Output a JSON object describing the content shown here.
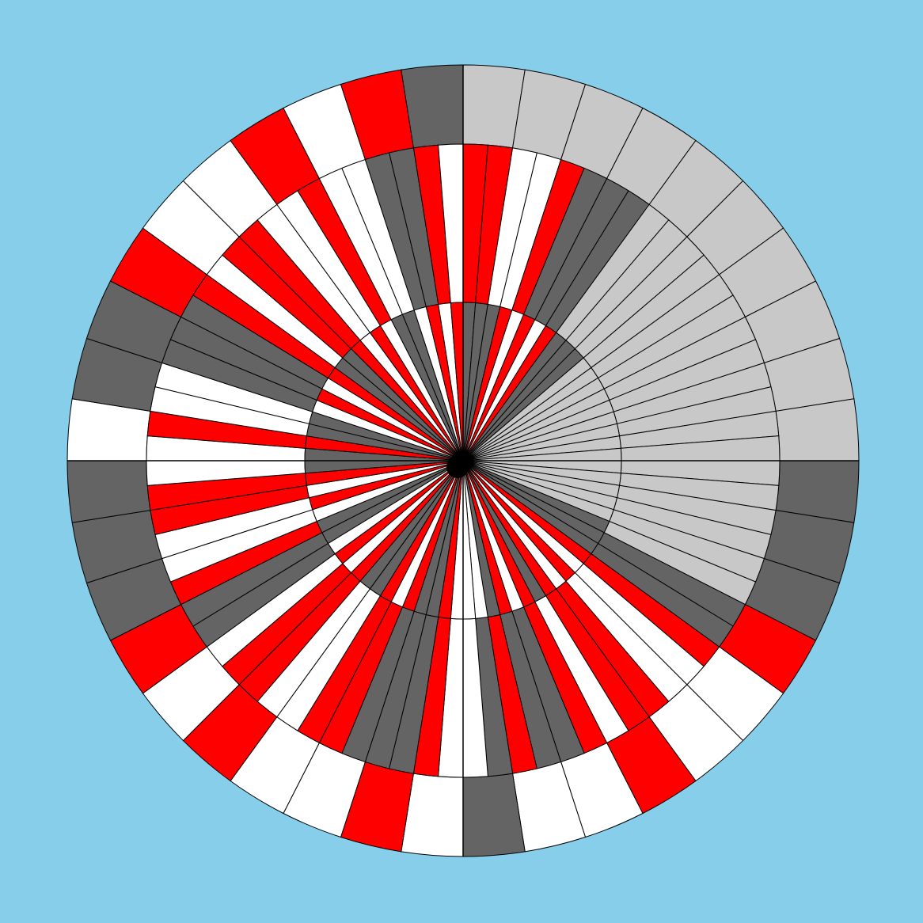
{
  "palette": {
    "background": "#87CEEB",
    "light_gray": "#C8C8C8",
    "dark_gray": "#646464",
    "red": "#FF0000",
    "white": "#FFFFFF",
    "stroke": "#000000"
  },
  "quadrants": [
    {
      "name": "top-right",
      "colors": [
        "light_gray",
        "dark_gray",
        "red",
        "white"
      ]
    },
    {
      "name": "bottom-right",
      "colors": [
        "light_gray",
        "dark_gray",
        "red",
        "white"
      ]
    },
    {
      "name": "bottom-left",
      "colors": [
        "dark_gray",
        "red",
        "white",
        "dark_gray"
      ]
    },
    {
      "name": "top-left",
      "colors": [
        "dark_gray",
        "red",
        "white",
        "light_gray"
      ]
    }
  ],
  "rings": [
    {
      "name": "inner-ring",
      "segments_per_quadrant": 20,
      "radius_ratio": 0.4
    },
    {
      "name": "middle-ring",
      "segments_per_quadrant": 20,
      "radius_ratio": 0.8
    },
    {
      "name": "outer-ring",
      "segments_per_quadrant": 10,
      "radius_ratio": 1.0
    }
  ],
  "sequence": {
    "top-right": {
      "outer": [
        "light_gray",
        "light_gray",
        "light_gray",
        "light_gray",
        "light_gray",
        "light_gray",
        "light_gray",
        "light_gray",
        "light_gray",
        "light_gray"
      ],
      "middle": [
        "red",
        "red",
        "white",
        "white",
        "red",
        "dark_gray",
        "dark_gray",
        "dark_gray",
        "light_gray",
        "light_gray",
        "light_gray",
        "light_gray",
        "light_gray",
        "light_gray",
        "light_gray",
        "light_gray",
        "light_gray",
        "light_gray",
        "light_gray",
        "light_gray"
      ],
      "inner": [
        "dark_gray",
        "dark_gray",
        "dark_gray",
        "red",
        "white",
        "red",
        "white",
        "red",
        "dark_gray",
        "dark_gray",
        "dark_gray",
        "light_gray",
        "light_gray",
        "light_gray",
        "light_gray",
        "light_gray",
        "light_gray",
        "light_gray",
        "light_gray",
        "light_gray"
      ]
    },
    "bottom-right": {
      "outer": [
        "dark_gray",
        "dark_gray",
        "dark_gray",
        "red",
        "white",
        "white",
        "red",
        "white",
        "white",
        "dark_gray"
      ],
      "middle": [
        "light_gray",
        "light_gray",
        "light_gray",
        "light_gray",
        "light_gray",
        "light_gray",
        "dark_gray",
        "dark_gray",
        "red",
        "white",
        "white",
        "red",
        "red",
        "white",
        "red",
        "dark_gray",
        "dark_gray",
        "red",
        "dark_gray",
        "white"
      ],
      "inner": [
        "light_gray",
        "light_gray",
        "light_gray",
        "light_gray",
        "light_gray",
        "dark_gray",
        "dark_gray",
        "dark_gray",
        "red",
        "white",
        "red",
        "white",
        "red",
        "dark_gray",
        "red",
        "white",
        "red",
        "dark_gray",
        "white",
        "white"
      ]
    },
    "bottom-left": {
      "outer": [
        "white",
        "red",
        "white",
        "white",
        "red",
        "white",
        "red",
        "dark_gray",
        "dark_gray",
        "dark_gray"
      ],
      "middle": [
        "white",
        "red",
        "dark_gray",
        "dark_gray",
        "dark_gray",
        "red",
        "red",
        "white",
        "white",
        "red",
        "red",
        "white",
        "dark_gray",
        "dark_gray",
        "red",
        "white",
        "white",
        "red",
        "red",
        "white"
      ],
      "inner": [
        "white",
        "red",
        "dark_gray",
        "dark_gray",
        "red",
        "white",
        "red",
        "dark_gray",
        "dark_gray",
        "red",
        "white",
        "red",
        "white",
        "dark_gray",
        "dark_gray",
        "white",
        "red",
        "white",
        "red",
        "dark_gray"
      ]
    },
    "top-left": {
      "outer": [
        "white",
        "dark_gray",
        "dark_gray",
        "red",
        "white",
        "white",
        "red",
        "white",
        "red",
        "dark_gray"
      ],
      "middle": [
        "white",
        "red",
        "white",
        "white",
        "dark_gray",
        "dark_gray",
        "dark_gray",
        "red",
        "white",
        "red",
        "red",
        "white",
        "white",
        "red",
        "white",
        "white",
        "dark_gray",
        "dark_gray",
        "red",
        "white"
      ],
      "inner": [
        "dark_gray",
        "red",
        "dark_gray",
        "dark_gray",
        "white",
        "red",
        "white",
        "red",
        "dark_gray",
        "dark_gray",
        "red",
        "white",
        "red",
        "white",
        "dark_gray",
        "dark_gray",
        "white",
        "red",
        "white",
        "red"
      ]
    }
  }
}
